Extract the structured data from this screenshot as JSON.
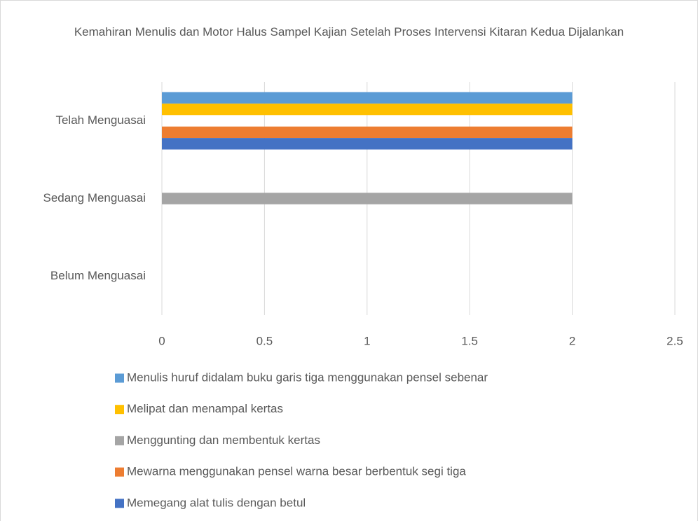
{
  "chart_data": {
    "type": "hbar",
    "title": "Kemahiran Menulis dan Motor Halus Sampel Kajian Setelah Proses Intervensi Kitaran Kedua Dijalankan",
    "categories": [
      "Telah Menguasai",
      "Sedang Menguasai",
      "Belum Menguasai"
    ],
    "series": [
      {
        "name": "Menulis huruf didalam buku garis tiga menggunakan pensel sebenar",
        "color": "#5b9bd5",
        "values": [
          2,
          0,
          0
        ]
      },
      {
        "name": "Melipat dan menampal kertas",
        "color": "#ffc000",
        "values": [
          2,
          0,
          0
        ]
      },
      {
        "name": "Menggunting dan membentuk kertas",
        "color": "#a5a5a5",
        "values": [
          0,
          2,
          0
        ]
      },
      {
        "name": "Mewarna menggunakan pensel warna besar berbentuk segi tiga",
        "color": "#ed7d31",
        "values": [
          2,
          0,
          0
        ]
      },
      {
        "name": "Memegang alat tulis dengan betul",
        "color": "#4472c4",
        "values": [
          2,
          0,
          0
        ]
      }
    ],
    "xlim": [
      0,
      2.5
    ],
    "xticks": [
      0,
      0.5,
      1,
      1.5,
      2,
      2.5
    ],
    "grid": true,
    "legend": "bottom"
  }
}
